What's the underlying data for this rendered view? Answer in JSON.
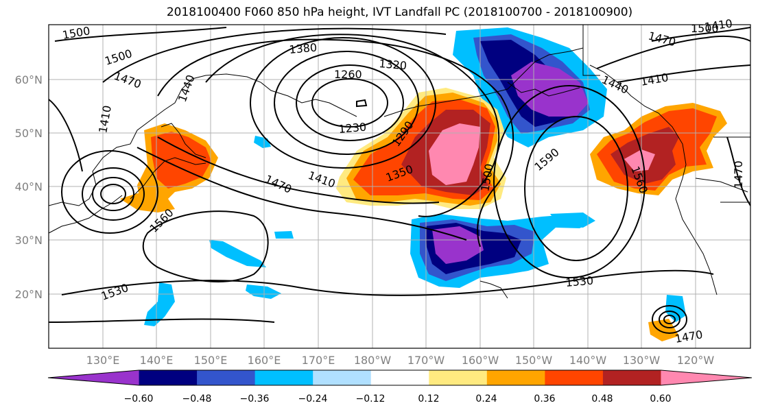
{
  "title": "2018100400 F060 850 hPa height, IVT Landfall PC (2018100700 - 2018100900)",
  "lat_labels": [
    "60°N",
    "50°N",
    "40°N",
    "30°N",
    "20°N"
  ],
  "lon_labels": [
    "130°E",
    "140°E",
    "150°E",
    "160°E",
    "170°E",
    "180°W",
    "170°W",
    "160°W",
    "150°W",
    "140°W",
    "130°W",
    "120°W"
  ],
  "contour_labels": [
    "1500",
    "1500",
    "1470",
    "1410",
    "1440",
    "1380",
    "1320",
    "1260",
    "1230",
    "1290",
    "1350",
    "1410",
    "1470",
    "1560",
    "1530",
    "1500",
    "1590",
    "1560",
    "1530",
    "1470",
    "1410",
    "1440",
    "1410",
    "1470",
    "1500",
    "1470"
  ],
  "colorbar": {
    "tick_labels": [
      "−0.60",
      "−0.48",
      "−0.36",
      "−0.24",
      "−0.12",
      "0.12",
      "0.24",
      "0.36",
      "0.48",
      "0.60"
    ],
    "colors": [
      "#9933cc",
      "#000080",
      "#3355cc",
      "#00bfff",
      "#b0e0ff",
      "#ffffff",
      "#ffea80",
      "#ffa500",
      "#ff4500",
      "#b22222",
      "#ff88b0"
    ]
  }
}
